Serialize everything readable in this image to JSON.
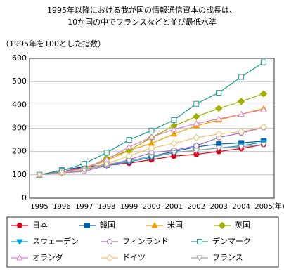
{
  "chart_data": {
    "type": "line",
    "title": [
      "1995年以降における我が国の情報通信資本の成長は、",
      "10か国の中でフランスなどと並び最低水準"
    ],
    "y_label": "（1995年を100とした指数）",
    "x_unit": "(年)",
    "categories": [
      "1995",
      "1996",
      "1997",
      "1998",
      "1999",
      "2000",
      "2001",
      "2002",
      "2003",
      "2004",
      "2005"
    ],
    "ylim": [
      0,
      600
    ],
    "yticks": [
      0,
      100,
      200,
      300,
      400,
      500,
      600
    ],
    "grid": true,
    "series": [
      {
        "name": "日本",
        "color": "#e0001a",
        "marker": "circle",
        "filled": true,
        "values": [
          100,
          112,
          133,
          140,
          150,
          165,
          180,
          188,
          200,
          213,
          230
        ]
      },
      {
        "name": "韓国",
        "color": "#0060b0",
        "marker": "square",
        "filled": true,
        "values": [
          100,
          120,
          135,
          142,
          160,
          180,
          200,
          220,
          232,
          237,
          245
        ]
      },
      {
        "name": "米国",
        "color": "#f0a000",
        "marker": "triangle",
        "filled": true,
        "values": [
          100,
          110,
          130,
          160,
          205,
          235,
          275,
          310,
          335,
          360,
          385
        ]
      },
      {
        "name": "英国",
        "color": "#a0b000",
        "marker": "diamond",
        "filled": true,
        "values": [
          100,
          110,
          125,
          170,
          205,
          260,
          310,
          350,
          385,
          415,
          448
        ]
      },
      {
        "name": "スウェーデン",
        "color": "#00a0e0",
        "marker": "triangle-down",
        "filled": true,
        "values": [
          100,
          110,
          125,
          140,
          155,
          175,
          195,
          205,
          215,
          225,
          240
        ]
      },
      {
        "name": "フィンランド",
        "color": "#a070c0",
        "marker": "circle",
        "filled": false,
        "values": [
          100,
          108,
          115,
          140,
          165,
          195,
          205,
          225,
          260,
          280,
          303
        ]
      },
      {
        "name": "デンマーク",
        "color": "#20a090",
        "marker": "square",
        "filled": false,
        "values": [
          100,
          118,
          148,
          195,
          250,
          290,
          335,
          405,
          452,
          520,
          583
        ]
      },
      {
        "name": "オランダ",
        "color": "#e080c0",
        "marker": "triangle",
        "filled": false,
        "values": [
          100,
          110,
          130,
          165,
          220,
          262,
          295,
          320,
          340,
          360,
          380
        ]
      },
      {
        "name": "ドイツ",
        "color": "#f0c070",
        "marker": "diamond",
        "filled": false,
        "values": [
          100,
          108,
          125,
          148,
          180,
          215,
          235,
          260,
          275,
          285,
          305
        ]
      },
      {
        "name": "フランス",
        "color": "#a0a0a0",
        "marker": "triangle-down",
        "filled": false,
        "values": [
          100,
          108,
          120,
          145,
          160,
          180,
          195,
          205,
          215,
          220,
          230
        ]
      }
    ]
  }
}
